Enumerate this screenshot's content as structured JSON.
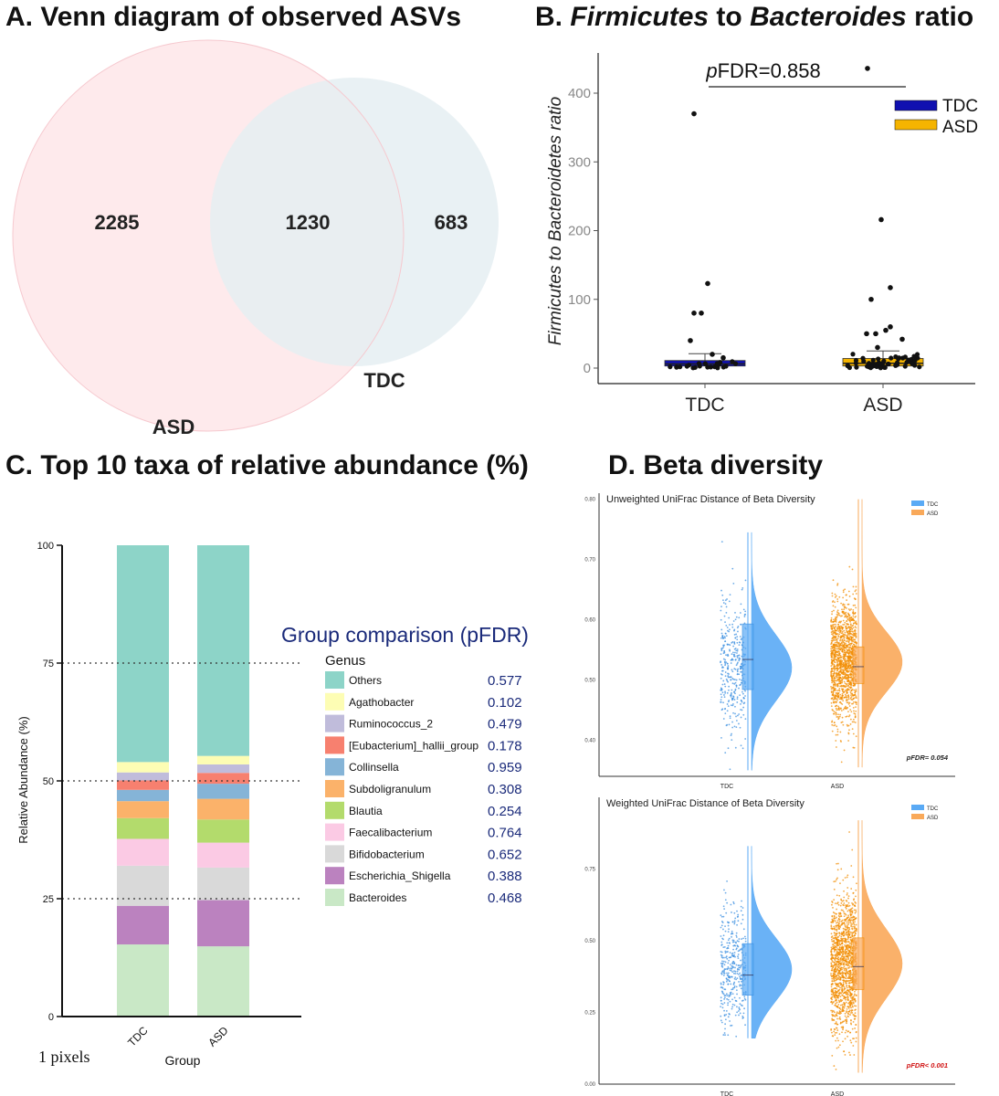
{
  "panels": {
    "a_title": "A. Venn diagram of observed ASVs",
    "b_title_prefix": "B. ",
    "b_title_it1": "Firmicutes",
    "b_title_mid": " to ",
    "b_title_it2": "Bacteroides",
    "b_title_suffix": " ratio",
    "c_title": "C. Top 10 taxa of relative abundance (%)",
    "d_title": "D. Beta diversity",
    "footnote": "1 pixels"
  },
  "colors": {
    "asd_circle": "#fde3e6",
    "tdc_circle": "#e5eff2",
    "tdc_box": "#1010b0",
    "asd_box": "#f5b400",
    "tdc_violin": "#5aaaf5",
    "asd_violin": "#f9a95a",
    "tdc_points": "#3b8fe0",
    "asd_points": "#f28c00",
    "group_comparison": "#1a2a7a",
    "pfdr_sig": "#d01010"
  },
  "chart_data": [
    {
      "id": "A",
      "type": "venn",
      "sets": [
        {
          "name": "ASD",
          "only": "2285"
        },
        {
          "name": "TDC",
          "only": "683"
        }
      ],
      "intersection": "1230"
    },
    {
      "id": "B",
      "type": "box",
      "categories": [
        "TDC",
        "ASD"
      ],
      "ylabel": "Firmicutes to Bacteroidetes ratio",
      "yticks": [
        "0",
        "100",
        "200",
        "300",
        "400"
      ],
      "ylim": [
        -15,
        455
      ],
      "annotation_prefix": "p",
      "annotation_value": "FDR=0.858",
      "legend": [
        "TDC",
        "ASD"
      ],
      "legend_position": "top-right",
      "boxes": [
        {
          "group": "TDC",
          "q1": 3,
          "median": 6,
          "q3": 11,
          "whisker_high": 21
        },
        {
          "group": "ASD",
          "q1": 3,
          "median": 7,
          "q3": 14,
          "whisker_high": 25
        }
      ],
      "outliers": {
        "TDC": [
          370,
          123,
          80,
          80,
          40,
          20,
          15
        ],
        "ASD": [
          436,
          216,
          117,
          100,
          60,
          55,
          50,
          50,
          42,
          30
        ]
      }
    },
    {
      "id": "C",
      "type": "stacked_bar",
      "categories": [
        "TDC",
        "ASD"
      ],
      "xlabel": "Group",
      "ylabel": "Relative Abundance (%)",
      "yticks": [
        "0",
        "25",
        "50",
        "75",
        "100"
      ],
      "ylim": [
        0,
        100
      ],
      "legend_heading": "Group comparison (pFDR)",
      "legend_title": "Genus",
      "series": [
        {
          "name": "Bacteroides",
          "values": [
            15.3,
            14.9
          ],
          "pfdr": "0.468",
          "color": "#c9e8c6"
        },
        {
          "name": "Escherichia_Shigella",
          "values": [
            8.2,
            9.8
          ],
          "pfdr": "0.388",
          "color": "#bb82bf"
        },
        {
          "name": "Bifidobacterium",
          "values": [
            8.5,
            6.9
          ],
          "pfdr": "0.652",
          "color": "#d9d9d9"
        },
        {
          "name": "Faecalibacterium",
          "values": [
            5.7,
            5.3
          ],
          "pfdr": "0.764",
          "color": "#fbcae4"
        },
        {
          "name": "Blautia",
          "values": [
            4.4,
            4.9
          ],
          "pfdr": "0.254",
          "color": "#b3db6c"
        },
        {
          "name": "Subdoligranulum",
          "values": [
            3.6,
            4.4
          ],
          "pfdr": "0.308",
          "color": "#fbb26a"
        },
        {
          "name": "Collinsella",
          "values": [
            2.4,
            3.2
          ],
          "pfdr": "0.959",
          "color": "#85b4d7"
        },
        {
          "name": "[Eubacterium]_hallii_group",
          "values": [
            2.0,
            2.3
          ],
          "pfdr": "0.178",
          "color": "#f7806f"
        },
        {
          "name": "Ruminococcus_2",
          "values": [
            1.7,
            1.8
          ],
          "pfdr": "0.479",
          "color": "#c0bcdb"
        },
        {
          "name": "Agathobacter",
          "values": [
            2.2,
            1.8
          ],
          "pfdr": "0.102",
          "color": "#fdfdb4"
        },
        {
          "name": "Others",
          "values": [
            46.0,
            44.7
          ],
          "pfdr": "0.577",
          "color": "#8dd4c8"
        }
      ]
    },
    {
      "id": "D1",
      "type": "raincloud",
      "title": "Unweighted UniFrac Distance of Beta Diversity",
      "categories": [
        "TDC",
        "ASD"
      ],
      "yticks": [
        "0.40",
        "0.50",
        "0.60",
        "0.70",
        "0.80"
      ],
      "ylim": [
        0.34,
        0.81
      ],
      "legend": [
        "TDC",
        "ASD"
      ],
      "legend_position": "top-right",
      "pfdr_label": "pFDR= 0.054",
      "groups": [
        {
          "name": "TDC",
          "q1": 0.484,
          "median": 0.534,
          "q3": 0.593,
          "min": 0.35,
          "max": 0.745,
          "mode": 0.52,
          "spread": 0.055,
          "n": 360
        },
        {
          "name": "ASD",
          "q1": 0.494,
          "median": 0.522,
          "q3": 0.555,
          "min": 0.355,
          "max": 0.8,
          "mode": 0.53,
          "spread": 0.05,
          "n": 1400
        }
      ]
    },
    {
      "id": "D2",
      "type": "raincloud",
      "title": "Weighted UniFrac Distance of Beta Diversity",
      "categories": [
        "TDC",
        "ASD"
      ],
      "yticks": [
        "0.00",
        "0.25",
        "0.50",
        "0.75"
      ],
      "ylim": [
        0,
        1.0
      ],
      "legend": [
        "TDC",
        "ASD"
      ],
      "legend_position": "top-right",
      "pfdr_label": "pFDR< 0.001",
      "groups": [
        {
          "name": "TDC",
          "q1": 0.31,
          "median": 0.38,
          "q3": 0.49,
          "min": 0.16,
          "max": 0.83,
          "mode": 0.4,
          "spread": 0.11,
          "n": 380
        },
        {
          "name": "ASD",
          "q1": 0.33,
          "median": 0.41,
          "q3": 0.51,
          "min": 0.04,
          "max": 0.92,
          "mode": 0.42,
          "spread": 0.12,
          "n": 1400
        }
      ]
    }
  ]
}
